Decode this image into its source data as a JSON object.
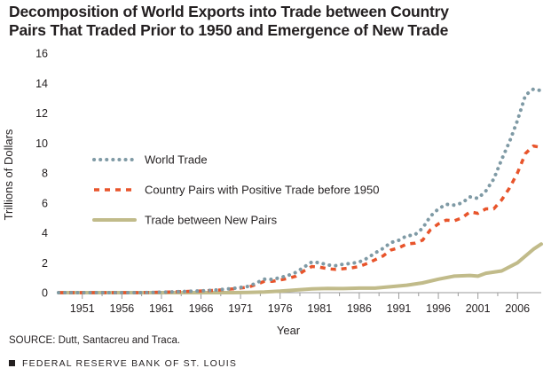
{
  "chart_data": {
    "type": "line",
    "title_line1": "Decomposition of World Exports into Trade between Country",
    "title_line2": "Pairs That Traded Prior to 1950 and Emergence of New Trade",
    "xlabel": "Year",
    "ylabel": "Trillions of Dollars",
    "xlim": [
      1948,
      2009
    ],
    "ylim": [
      0,
      16
    ],
    "yticks": [
      0,
      2,
      4,
      6,
      8,
      10,
      12,
      14,
      16
    ],
    "xticks": [
      1951,
      1956,
      1961,
      1966,
      1971,
      1976,
      1981,
      1986,
      1991,
      1996,
      2001,
      2006
    ],
    "legend_position": "left-middle",
    "colors": {
      "world": "#7f9aa5",
      "prior": "#e8542b",
      "new": "#c1bb8a",
      "axis": "#9a9a9a"
    },
    "series": [
      {
        "name": "World Trade",
        "style": "dotted",
        "x": [
          1948,
          1950,
          1952,
          1954,
          1956,
          1958,
          1960,
          1962,
          1964,
          1966,
          1968,
          1970,
          1972,
          1973,
          1974,
          1975,
          1976,
          1977,
          1978,
          1979,
          1980,
          1981,
          1982,
          1983,
          1984,
          1985,
          1986,
          1987,
          1988,
          1989,
          1990,
          1991,
          1992,
          1993,
          1994,
          1995,
          1996,
          1997,
          1998,
          1999,
          2000,
          2001,
          2002,
          2003,
          2004,
          2005,
          2006,
          2007,
          2008,
          2009
        ],
        "values": [
          0,
          0,
          0,
          0,
          0,
          0,
          0.02,
          0.05,
          0.08,
          0.12,
          0.18,
          0.28,
          0.42,
          0.65,
          0.9,
          0.88,
          1.0,
          1.15,
          1.35,
          1.7,
          2.05,
          2.0,
          1.85,
          1.8,
          1.9,
          1.95,
          2.05,
          2.3,
          2.65,
          2.95,
          3.35,
          3.5,
          3.8,
          3.85,
          4.3,
          5.1,
          5.6,
          5.9,
          5.85,
          6.0,
          6.4,
          6.3,
          6.8,
          7.6,
          8.9,
          10.1,
          11.5,
          13.2,
          13.6,
          13.5
        ]
      },
      {
        "name": "Country Pairs with Positive Trade before 1950",
        "style": "dashed",
        "x": [
          1948,
          1950,
          1952,
          1954,
          1956,
          1958,
          1960,
          1962,
          1964,
          1966,
          1968,
          1970,
          1972,
          1973,
          1974,
          1975,
          1976,
          1977,
          1978,
          1979,
          1980,
          1981,
          1982,
          1983,
          1984,
          1985,
          1986,
          1987,
          1988,
          1989,
          1990,
          1991,
          1992,
          1993,
          1994,
          1995,
          1996,
          1997,
          1998,
          1999,
          2000,
          2001,
          2002,
          2003,
          2004,
          2005,
          2006,
          2007,
          2008,
          2009
        ],
        "values": [
          0,
          0,
          0,
          0,
          0,
          0,
          0.02,
          0.05,
          0.08,
          0.11,
          0.16,
          0.25,
          0.37,
          0.55,
          0.75,
          0.75,
          0.85,
          0.95,
          1.1,
          1.45,
          1.75,
          1.7,
          1.6,
          1.55,
          1.6,
          1.65,
          1.75,
          1.95,
          2.2,
          2.45,
          2.85,
          3.0,
          3.25,
          3.3,
          3.5,
          4.2,
          4.6,
          4.85,
          4.8,
          5.0,
          5.4,
          5.3,
          5.6,
          5.6,
          6.2,
          7.0,
          8.0,
          9.3,
          9.8,
          9.7
        ]
      },
      {
        "name": "Trade between New Pairs",
        "style": "solid",
        "x": [
          1948,
          1950,
          1955,
          1960,
          1965,
          1970,
          1972,
          1974,
          1976,
          1978,
          1980,
          1982,
          1984,
          1986,
          1988,
          1990,
          1992,
          1994,
          1996,
          1998,
          2000,
          2001,
          2002,
          2004,
          2006,
          2008,
          2009
        ],
        "values": [
          0,
          0,
          0,
          0,
          0,
          0,
          0.02,
          0.05,
          0.1,
          0.18,
          0.25,
          0.28,
          0.27,
          0.3,
          0.3,
          0.4,
          0.5,
          0.65,
          0.9,
          1.1,
          1.15,
          1.1,
          1.3,
          1.45,
          2.0,
          2.9,
          3.25
        ]
      }
    ]
  },
  "source": "SOURCE: Dutt, Santacreu and Traca.",
  "footer": "FEDERAL RESERVE BANK OF ST. LOUIS"
}
